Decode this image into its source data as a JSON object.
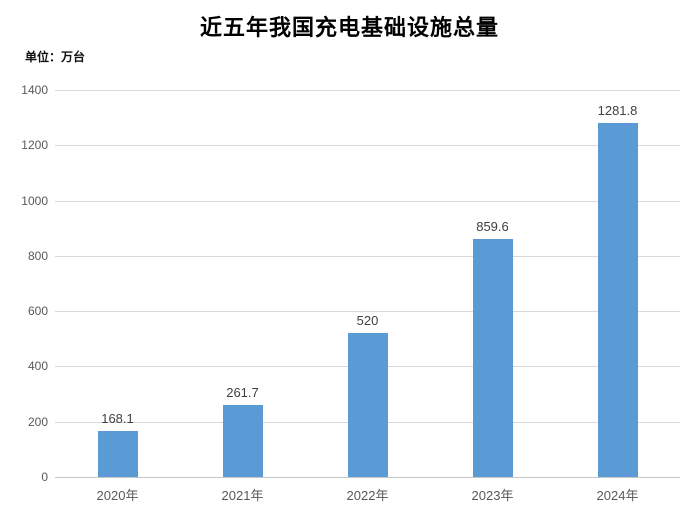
{
  "chart_data": {
    "type": "bar",
    "title": "近五年我国充电基础设施总量",
    "unit_label": "单位：万台",
    "categories": [
      "2020年",
      "2021年",
      "2022年",
      "2023年",
      "2024年"
    ],
    "values": [
      168.1,
      261.7,
      520,
      859.6,
      1281.8
    ],
    "data_labels": [
      "168.1",
      "261.7",
      "520",
      "859.6",
      "1281.8"
    ],
    "xlabel": "",
    "ylabel": "",
    "ylim": [
      0,
      1400
    ],
    "yticks": [
      0,
      200,
      400,
      600,
      800,
      1000,
      1200,
      1400
    ],
    "grid": "horizontal",
    "legend": "none",
    "colors": {
      "bar": "#5B9BD5",
      "gridline": "#D9D9D9",
      "axis_line": "#C6C6C6",
      "tick_label": "#595959",
      "data_label": "#404040",
      "title": "#000000",
      "background": "#FFFFFF"
    }
  }
}
